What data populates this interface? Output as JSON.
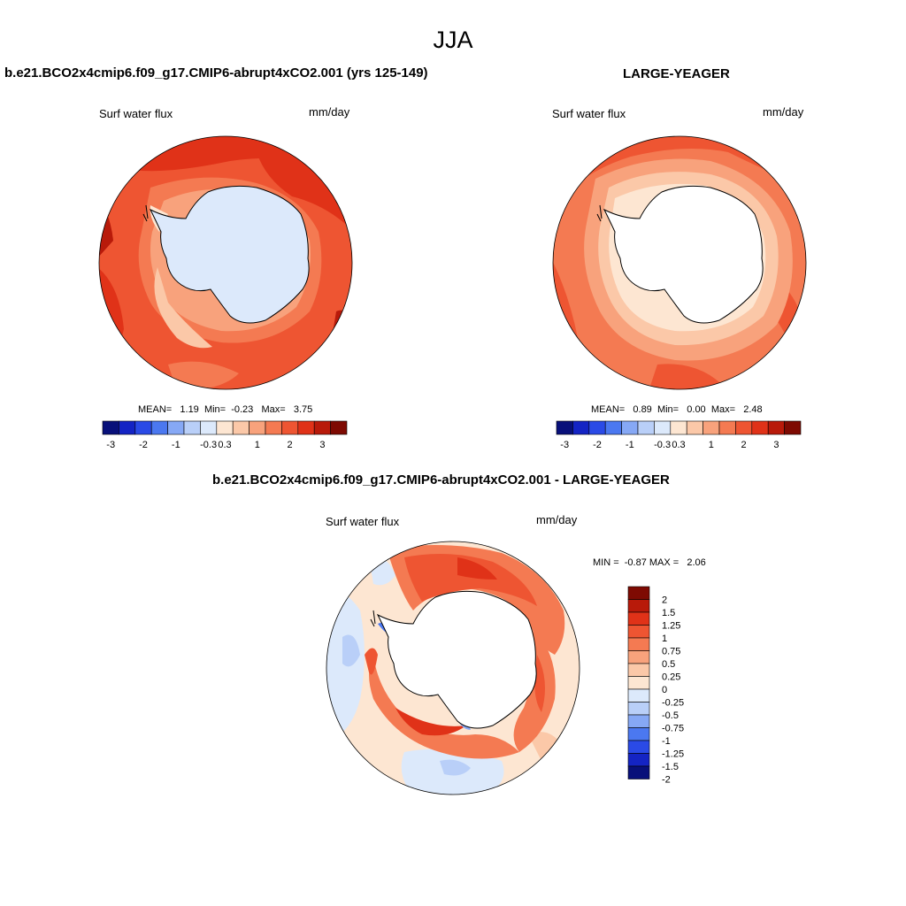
{
  "figure": {
    "title": "JJA"
  },
  "panels": [
    {
      "id": "model",
      "header": "b.e21.BCO2x4cmip6.f09_g17.CMIP6-abrupt4xCO2.001 (yrs 125-149)",
      "variable_label": "Surf water flux",
      "units_label": "mm/day",
      "stats": {
        "mean": "1.19",
        "min": "-0.23",
        "max": "3.75"
      },
      "stats_labels": {
        "mean": "MEAN=",
        "min": "Min=",
        "max": "Max="
      },
      "colorbar": {
        "colors": [
          "#08107a",
          "#1424c4",
          "#2a4ae6",
          "#4b78f0",
          "#86a8f5",
          "#b9cff8",
          "#dce9fb",
          "#fde6d2",
          "#fbc8a8",
          "#f8a27c",
          "#f47a52",
          "#ee5532",
          "#e03218",
          "#b81a0a",
          "#7e0a02"
        ],
        "tick_labels": [
          "-3",
          "-2",
          "-1",
          "-0.3",
          "0.3",
          "1",
          "2",
          "3"
        ]
      }
    },
    {
      "id": "obs",
      "header": "LARGE-YEAGER",
      "variable_label": "Surf water flux",
      "units_label": "mm/day",
      "stats": {
        "mean": "0.89",
        "min": "0.00",
        "max": "2.48"
      },
      "stats_labels": {
        "mean": "MEAN=",
        "min": "Min=",
        "max": "Max="
      },
      "colorbar": {
        "colors": [
          "#08107a",
          "#1424c4",
          "#2a4ae6",
          "#4b78f0",
          "#86a8f5",
          "#b9cff8",
          "#dce9fb",
          "#fde6d2",
          "#fbc8a8",
          "#f8a27c",
          "#f47a52",
          "#ee5532",
          "#e03218",
          "#b81a0a",
          "#7e0a02"
        ],
        "tick_labels": [
          "-3",
          "-2",
          "-1",
          "-0.3",
          "0.3",
          "1",
          "2",
          "3"
        ]
      }
    },
    {
      "id": "diff",
      "header": "b.e21.BCO2x4cmip6.f09_g17.CMIP6-abrupt4xCO2.001 - LARGE-YEAGER",
      "variable_label": "Surf water flux",
      "units_label": "mm/day",
      "minmax_text": "MIN =  -0.87 MAX =   2.06",
      "colorbar": {
        "colors": [
          "#7e0a02",
          "#b81a0a",
          "#e03218",
          "#ee5532",
          "#f47a52",
          "#f8a27c",
          "#fbc8a8",
          "#fde6d2",
          "#dce9fb",
          "#b9cff8",
          "#86a8f5",
          "#4b78f0",
          "#2a4ae6",
          "#1424c4",
          "#08107a"
        ],
        "tick_labels": [
          "2",
          "1.5",
          "1.25",
          "1",
          "0.75",
          "0.5",
          "0.25",
          "0",
          "-0.25",
          "-0.5",
          "-0.75",
          "-1",
          "-1.25",
          "-1.5",
          "-2"
        ]
      }
    }
  ]
}
